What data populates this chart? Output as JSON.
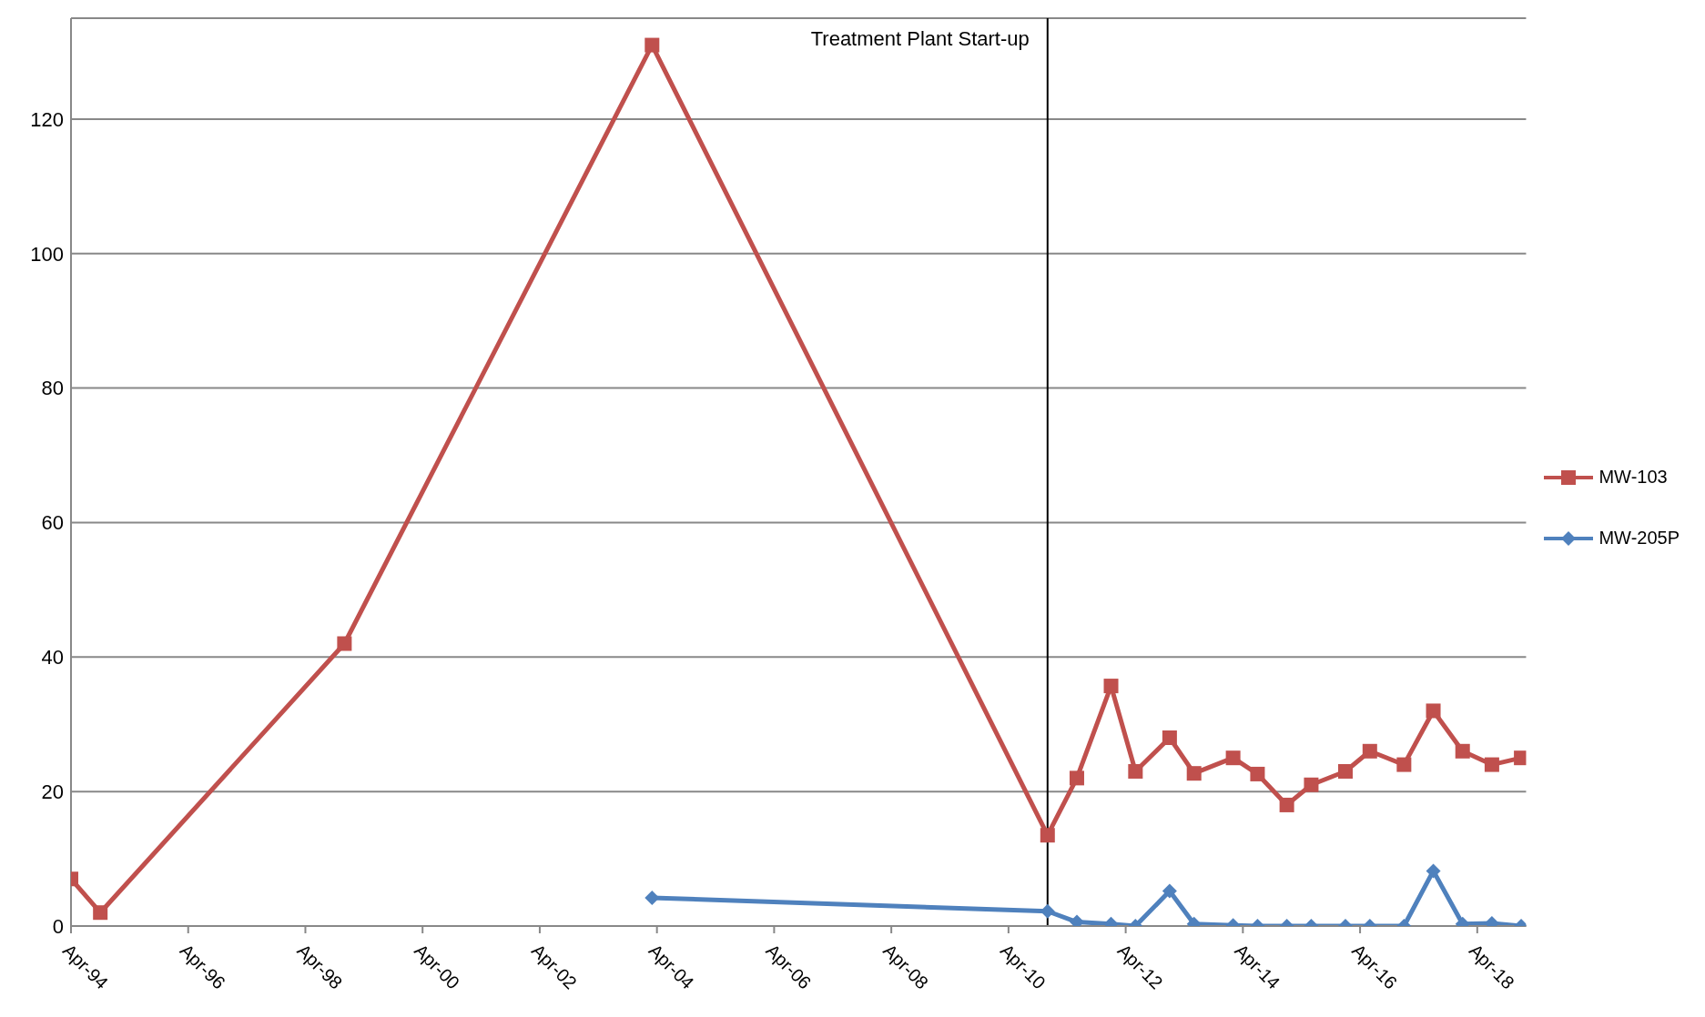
{
  "chart_data": {
    "type": "line",
    "xlim": [
      "1994-04",
      "2019-02"
    ],
    "xticks": [
      {
        "value": "1994-04",
        "label": "Apr-94"
      },
      {
        "value": "1996-04",
        "label": "Apr-96"
      },
      {
        "value": "1998-04",
        "label": "Apr-98"
      },
      {
        "value": "2000-04",
        "label": "Apr-00"
      },
      {
        "value": "2002-04",
        "label": "Apr-02"
      },
      {
        "value": "2004-04",
        "label": "Apr-04"
      },
      {
        "value": "2006-04",
        "label": "Apr-06"
      },
      {
        "value": "2008-04",
        "label": "Apr-08"
      },
      {
        "value": "2010-04",
        "label": "Apr-10"
      },
      {
        "value": "2012-04",
        "label": "Apr-12"
      },
      {
        "value": "2014-04",
        "label": "Apr-14"
      },
      {
        "value": "2016-04",
        "label": "Apr-16"
      },
      {
        "value": "2018-04",
        "label": "Apr-18"
      }
    ],
    "ylim": [
      0,
      135
    ],
    "yticks": [
      0,
      20,
      40,
      60,
      80,
      100,
      120
    ],
    "grid": "y",
    "legend": "right",
    "ref_lines": [
      {
        "axis": "x",
        "value": "2010-12",
        "label": "Treatment Plant Start-up",
        "color": "#000000"
      }
    ],
    "series": [
      {
        "name": "MW-103",
        "color": "#c0504d",
        "marker": "square",
        "x": [
          "1994-04",
          "1994-10",
          "1998-12",
          "2004-03",
          "2010-12",
          "2011-06",
          "2012-01",
          "2012-06",
          "2013-01",
          "2013-06",
          "2014-02",
          "2014-07",
          "2015-01",
          "2015-06",
          "2016-01",
          "2016-06",
          "2017-01",
          "2017-07",
          "2018-01",
          "2018-07",
          "2019-01"
        ],
        "values": [
          7,
          2,
          42,
          131,
          13.5,
          22,
          35.7,
          23,
          28,
          22.7,
          25,
          22.6,
          18,
          21,
          23,
          26,
          24,
          32,
          26,
          24,
          25
        ]
      },
      {
        "name": "MW-205P",
        "color": "#4f81bd",
        "marker": "diamond",
        "x": [
          "2004-03",
          "2010-12",
          "2011-06",
          "2012-01",
          "2012-06",
          "2013-01",
          "2013-06",
          "2014-02",
          "2014-07",
          "2015-01",
          "2015-06",
          "2016-01",
          "2016-06",
          "2017-01",
          "2017-07",
          "2018-01",
          "2018-07",
          "2019-01"
        ],
        "values": [
          4.2,
          2.2,
          0.6,
          0.3,
          0,
          5.2,
          0.3,
          0.1,
          0,
          0,
          0,
          0,
          0,
          0,
          8.2,
          0.3,
          0.4,
          0
        ]
      }
    ]
  }
}
